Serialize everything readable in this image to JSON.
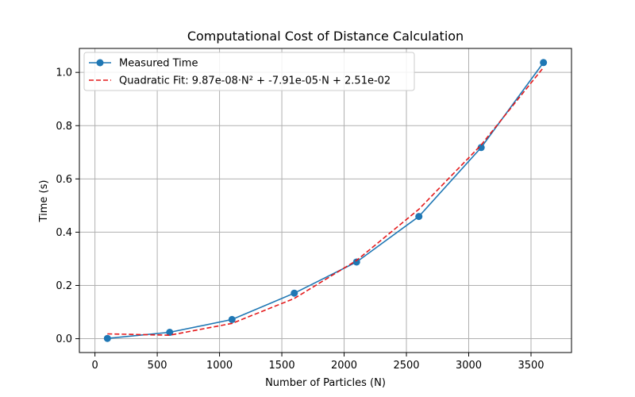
{
  "chart_data": {
    "type": "line",
    "title": "Computational Cost of Distance Calculation",
    "xlabel": "Number of Particles (N)",
    "ylabel": "Time (s)",
    "xlim": [
      -125,
      3825
    ],
    "ylim": [
      -0.052,
      1.09
    ],
    "xticks": [
      0,
      500,
      1000,
      1500,
      2000,
      2500,
      3000,
      3500
    ],
    "yticks": [
      0.0,
      0.2,
      0.4,
      0.6,
      0.8,
      1.0
    ],
    "xtick_labels": [
      "0",
      "500",
      "1000",
      "1500",
      "2000",
      "2500",
      "3000",
      "3500"
    ],
    "ytick_labels": [
      "0.0",
      "0.2",
      "0.4",
      "0.6",
      "0.8",
      "1.0"
    ],
    "grid": true,
    "legend_position": "top-left",
    "x": [
      100,
      600,
      1100,
      1600,
      2100,
      2600,
      3100,
      3600
    ],
    "series": [
      {
        "name": "Measured Time",
        "style": "solid-marker",
        "color": "#1f77b4",
        "values": [
          0.001,
          0.024,
          0.072,
          0.171,
          0.288,
          0.459,
          0.718,
          1.037
        ]
      },
      {
        "name": "Quadratic Fit: 9.87e-08·N² + -7.91e-05·N + 2.51e-02",
        "style": "dashed",
        "color": "#e41a1c",
        "values": [
          0.0181,
          0.0131,
          0.0574,
          0.151,
          0.2939,
          0.4861,
          0.7276,
          1.0184
        ]
      }
    ]
  }
}
